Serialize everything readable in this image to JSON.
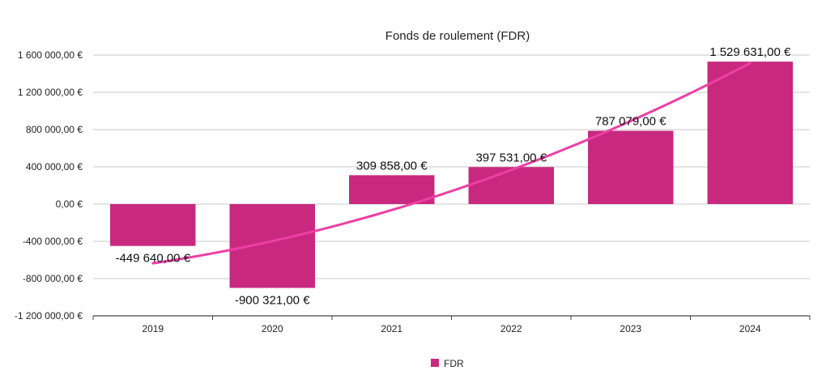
{
  "chart_data": {
    "type": "bar",
    "title": "Fonds de roulement (FDR)",
    "categories": [
      "2019",
      "2020",
      "2021",
      "2022",
      "2023",
      "2024"
    ],
    "series": [
      {
        "name": "FDR",
        "values": [
          -449640,
          -900321,
          309858,
          397531,
          787079,
          1529631
        ],
        "labels": [
          "-449 640,00 €",
          "-900 321,00 €",
          "309 858,00 €",
          "397 531,00 €",
          "787 079,00 €",
          "1 529 631,00 €"
        ],
        "color": "#c8297f"
      }
    ],
    "trendline": {
      "type": "polynomial",
      "color": "#ee3fa6"
    },
    "ylim": [
      -1200000,
      1600000
    ],
    "yticks": [
      1600000,
      1200000,
      800000,
      400000,
      0,
      -400000,
      -800000,
      -1200000
    ],
    "ytick_labels": [
      "1 600 000,00 €",
      "1 200 000,00 €",
      "800 000,00 €",
      "400 000,00 €",
      "0,00 €",
      "-400 000,00 €",
      "-800 000,00 €",
      "-1 200 000,00 €"
    ],
    "grid": true,
    "legend": {
      "position": "bottom",
      "entries": [
        "FDR"
      ]
    },
    "xlabel": "",
    "ylabel": ""
  }
}
